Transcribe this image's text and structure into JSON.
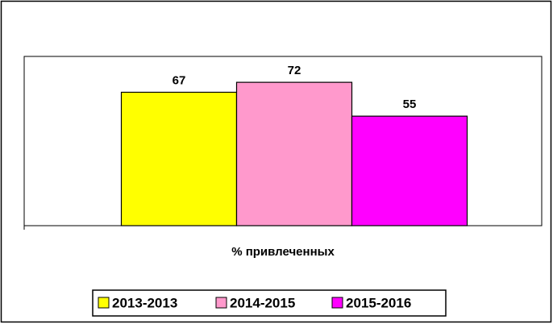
{
  "chart_data": {
    "type": "bar",
    "categories": [
      "% привлеченных"
    ],
    "series": [
      {
        "name": "2013-2013",
        "color": "#ffff00",
        "values": [
          67
        ]
      },
      {
        "name": "2014-2015",
        "color": "#ff99cc",
        "values": [
          72
        ]
      },
      {
        "name": "2015-2016",
        "color": "#ff00ff",
        "values": [
          55
        ]
      }
    ],
    "ylim": [
      0,
      85
    ]
  }
}
